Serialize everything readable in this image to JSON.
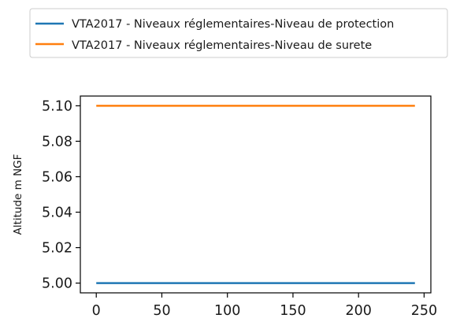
{
  "chart_data": {
    "type": "line",
    "title": "",
    "xlabel": "",
    "ylabel": "Altitude m NGF",
    "xlim": [
      -12.15,
      255.15
    ],
    "ylim": [
      4.9945,
      5.1055
    ],
    "xticks": [
      0,
      50,
      100,
      150,
      200,
      250
    ],
    "yticks": [
      5.0,
      5.02,
      5.04,
      5.06,
      5.08,
      5.1
    ],
    "xtick_labels": [
      "0",
      "50",
      "100",
      "150",
      "200",
      "250"
    ],
    "ytick_labels": [
      "5.00",
      "5.02",
      "5.04",
      "5.06",
      "5.08",
      "5.10"
    ],
    "grid": false,
    "legend_placement": "top, above plot",
    "series": [
      {
        "name": "VTA2017 - Niveaux réglementaires-Niveau de protection",
        "color": "#1f77b4",
        "x": [
          0,
          243
        ],
        "y": [
          5.0,
          5.0
        ]
      },
      {
        "name": "VTA2017 - Niveaux réglementaires-Niveau de surete",
        "color": "#ff7f0e",
        "x": [
          0,
          243
        ],
        "y": [
          5.1,
          5.1
        ]
      }
    ]
  }
}
